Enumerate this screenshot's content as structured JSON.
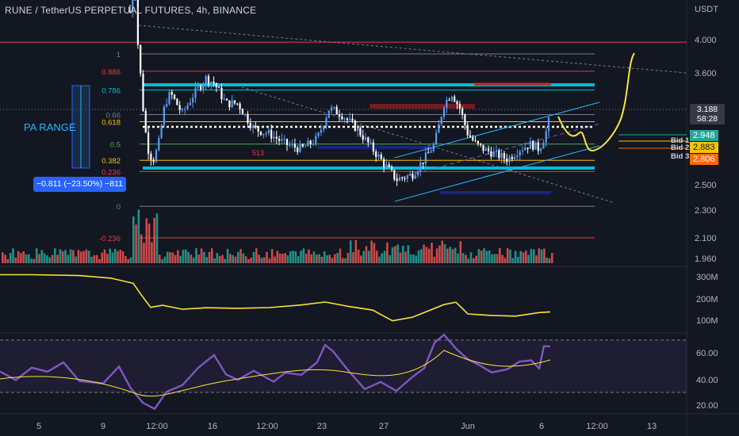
{
  "header": {
    "title": "RUNE / TetherUS PERPETUAL FUTURES, 4h, BINANCE",
    "unit": "USDT"
  },
  "annotations": {
    "pa_range": "PA RANGE",
    "measure": "−0.811 (−23.50%) −811",
    "price_label": "513"
  },
  "price_axis": {
    "ticks": [
      "4.000",
      "3.600",
      "3.188",
      "2.500",
      "2.300",
      "2.100",
      "1.960"
    ],
    "current_price": "3.188",
    "countdown": "58:28"
  },
  "bids": [
    {
      "name": "Bid 1",
      "price": "2.948",
      "color": "#26a69a"
    },
    {
      "name": "Bid 2",
      "price": "2.883",
      "color": "#f9c301"
    },
    {
      "name": "Bid 3",
      "price": "2.806",
      "color": "#ff6a00"
    }
  ],
  "fib_levels": [
    {
      "label": "1",
      "value": 3.829,
      "color": "#787b86"
    },
    {
      "label": "0.886",
      "value": 3.62,
      "color": "#f23645"
    },
    {
      "label": "0.786",
      "value": 3.432,
      "color": "#00bcd4"
    },
    {
      "label": "0.66",
      "value": 3.19,
      "color": "#787b86"
    },
    {
      "label": "0.618",
      "value": 3.12,
      "color": "#f9c301"
    },
    {
      "label": "0.5",
      "value": 2.9,
      "color": "#4caf50"
    },
    {
      "label": "0.382",
      "value": 2.74,
      "color": "#f9c301"
    },
    {
      "label": "0.236",
      "value": 2.63,
      "color": "#f23645"
    },
    {
      "label": "0",
      "value": 2.33,
      "color": "#787b86"
    },
    {
      "label": "-0.236",
      "value": 2.1,
      "color": "#f23645"
    }
  ],
  "volume_axis": {
    "ticks": [
      "300M",
      "200M",
      "100M"
    ]
  },
  "rsi_axis": {
    "ticks": [
      "60.00",
      "40.00",
      "20.00"
    ]
  },
  "time_axis": {
    "labels": [
      "5",
      "9",
      "12:00",
      "16",
      "12:00",
      "23",
      "27",
      "Jun",
      "6",
      "12:00",
      "13"
    ]
  },
  "chart_data": {
    "type": "candlestick",
    "symbol": "RUNE / TetherUS PERPETUAL FUTURES",
    "interval": "4h",
    "exchange": "BINANCE",
    "y_axis": {
      "unit": "USDT",
      "range": [
        1.96,
        4.2
      ]
    },
    "key_prices": {
      "last": 3.188,
      "bid_1": 2.948,
      "bid_2": 2.883,
      "bid_3": 2.806
    },
    "range_high": 3.432,
    "range_low": 2.63,
    "indicators": [
      "Volume",
      "OBV",
      "RSI"
    ],
    "rsi_range": [
      15,
      75
    ]
  },
  "colors": {
    "background": "#131722",
    "up": "#26a69a",
    "down": "#ef5350",
    "candle_up": "#5b9cf6",
    "candle_down": "#ffffff",
    "cyan": "#00bcd4",
    "yellow": "#f9e339",
    "rsi": "#7e57c2"
  }
}
